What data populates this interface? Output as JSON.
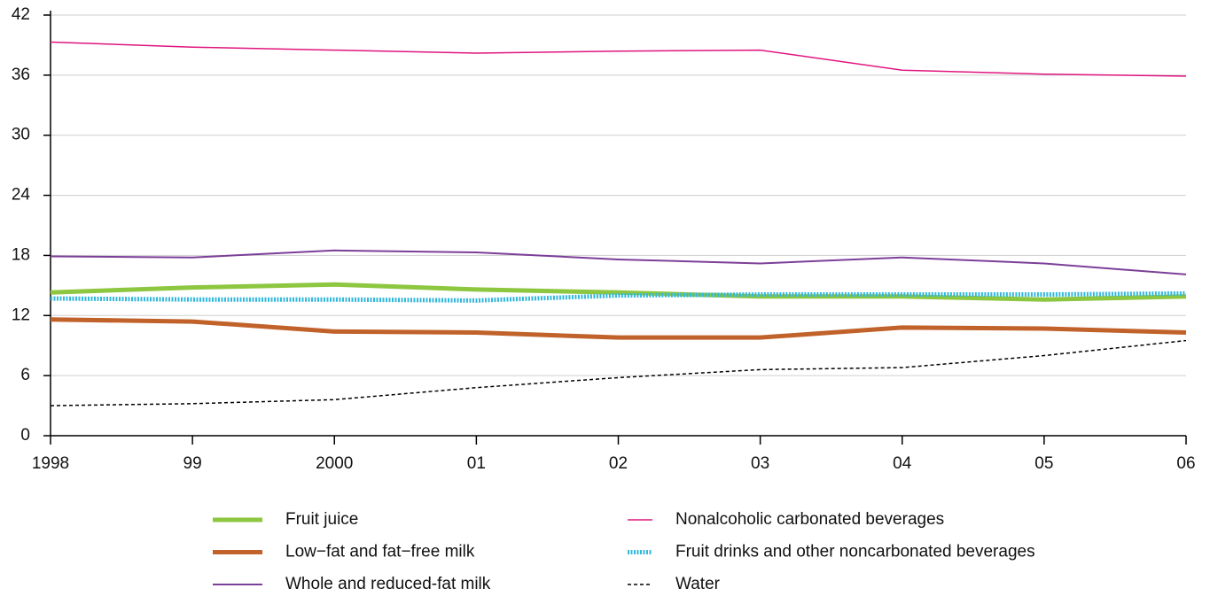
{
  "chart_data": {
    "type": "line",
    "categories": [
      "1998",
      "99",
      "2000",
      "01",
      "02",
      "03",
      "04",
      "05",
      "06"
    ],
    "series": [
      {
        "name": "Fruit juice",
        "color": "#8dc63f",
        "values": [
          14.3,
          14.8,
          15.1,
          14.6,
          14.3,
          13.9,
          13.9,
          13.6,
          13.9
        ]
      },
      {
        "name": "Low−fat and fat−free milk",
        "color": "#c0622a",
        "values": [
          11.6,
          11.4,
          10.4,
          10.3,
          9.8,
          9.8,
          10.8,
          10.7,
          10.3
        ]
      },
      {
        "name": "Whole and reduced-fat milk",
        "color": "#7b3f98",
        "values": [
          17.9,
          17.8,
          18.5,
          18.3,
          17.6,
          17.2,
          17.8,
          17.2,
          16.1
        ]
      },
      {
        "name": "Nonalcoholic carbonated beverages",
        "color": "#e0157f",
        "values": [
          39.3,
          38.8,
          38.5,
          38.2,
          38.4,
          38.5,
          36.5,
          36.1,
          35.9
        ]
      },
      {
        "name": "Fruit drinks and other noncarbonated beverages",
        "color": "#33b8dc",
        "values": [
          13.7,
          13.6,
          13.6,
          13.5,
          14.0,
          14.1,
          14.1,
          14.1,
          14.2
        ]
      },
      {
        "name": "Water",
        "color": "#000000",
        "values": [
          3.0,
          3.2,
          3.6,
          4.8,
          5.8,
          6.6,
          6.8,
          8.0,
          9.5
        ]
      }
    ],
    "ylim": [
      0,
      42
    ],
    "yticks": [
      0,
      6,
      12,
      18,
      24,
      30,
      36,
      42
    ],
    "grid": true
  }
}
